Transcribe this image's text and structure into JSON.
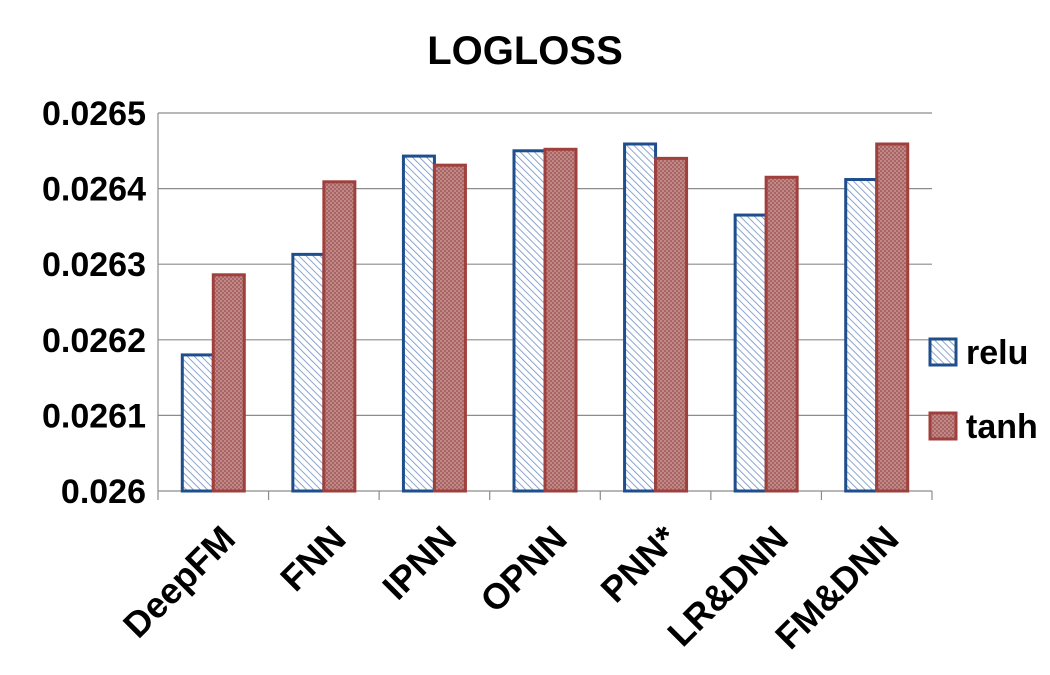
{
  "chart_data": {
    "type": "bar",
    "title": "LOGLOSS",
    "xlabel": "",
    "ylabel": "",
    "categories": [
      "DeepFM",
      "FNN",
      "IPNN",
      "OPNN",
      "PNN*",
      "LR&DNN",
      "FM&DNN"
    ],
    "series": [
      {
        "name": "relu",
        "values": [
          0.02618,
          0.026313,
          0.026443,
          0.02645,
          0.026459,
          0.026365,
          0.026412
        ],
        "color": "#1f4e8c",
        "pattern": "diagonal-hatch"
      },
      {
        "name": "tanh",
        "values": [
          0.026286,
          0.026409,
          0.026431,
          0.026452,
          0.02644,
          0.026415,
          0.026459
        ],
        "color": "#a0403d",
        "pattern": "dotted"
      }
    ],
    "ylim": [
      0.026,
      0.0265
    ],
    "yticks": [
      "0.026",
      "0.0261",
      "0.0262",
      "0.0263",
      "0.0264",
      "0.0265"
    ],
    "grid": true,
    "legend_position": "right"
  }
}
